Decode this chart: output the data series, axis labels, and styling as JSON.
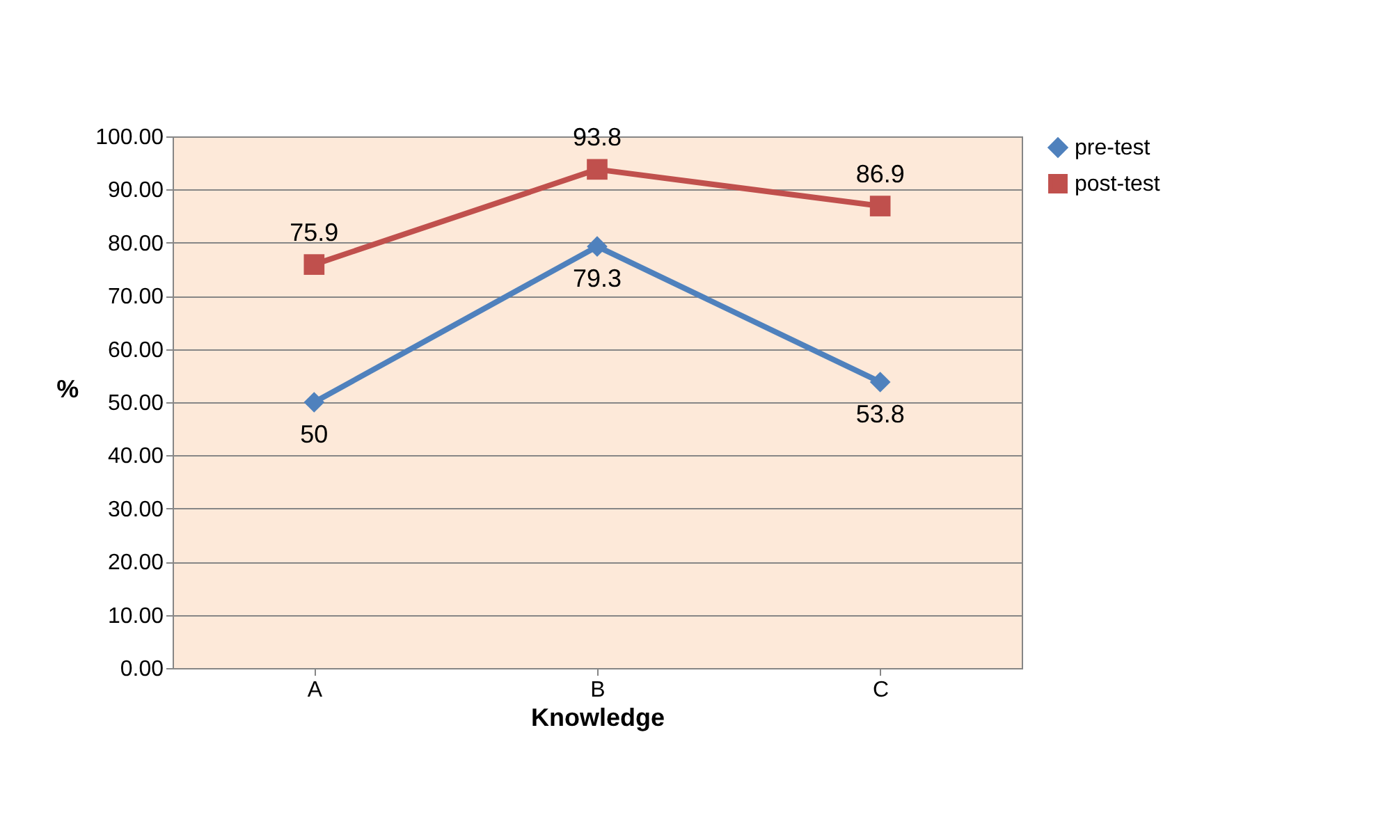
{
  "chart_data": {
    "type": "line",
    "xlabel": "Knowledge",
    "ylabel": "%",
    "categories": [
      "A",
      "B",
      "C"
    ],
    "series": [
      {
        "name": "pre-test",
        "color": "#4f81bd",
        "marker": "diamond",
        "values": [
          50,
          79.3,
          53.8
        ]
      },
      {
        "name": "post-test",
        "color": "#c0504d",
        "marker": "square",
        "values": [
          75.9,
          93.8,
          86.9
        ]
      }
    ],
    "ylim": [
      0,
      100
    ],
    "yticks": [
      {
        "value": 0,
        "label": "0.00"
      },
      {
        "value": 10,
        "label": "10.00"
      },
      {
        "value": 20,
        "label": "20.00"
      },
      {
        "value": 30,
        "label": "30.00"
      },
      {
        "value": 40,
        "label": "40.00"
      },
      {
        "value": 50,
        "label": "50.00"
      },
      {
        "value": 60,
        "label": "60.00"
      },
      {
        "value": 70,
        "label": "70.00"
      },
      {
        "value": 80,
        "label": "80.00"
      },
      {
        "value": 90,
        "label": "90.00"
      },
      {
        "value": 100,
        "label": "100.00"
      }
    ],
    "grid": "y",
    "legend": "right",
    "data_labels": true,
    "line_style": "solid"
  }
}
